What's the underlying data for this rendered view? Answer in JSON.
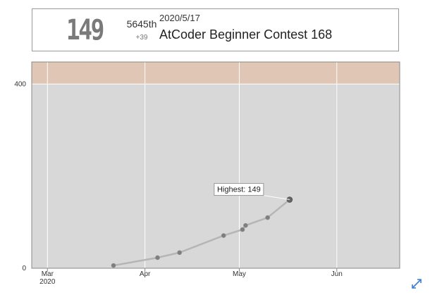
{
  "status": {
    "rating": "149",
    "place": "5645th",
    "diff": "+39",
    "date": "2020/5/17",
    "contest": "AtCoder Beginner Contest 168"
  },
  "tooltip": {
    "label": "Highest: 149"
  },
  "colors": {
    "band_gray": "#d8d8d8",
    "band_brown": "#e0c6b4",
    "line": "#b5b5b5",
    "point": "#7d7d7d",
    "highest_point": "#666666"
  },
  "chart_data": {
    "type": "line",
    "title": "",
    "xlabel": "",
    "ylabel": "",
    "x_range": [
      "2020-02-25",
      "2020-06-21"
    ],
    "y_range": [
      0,
      448
    ],
    "y_ticks": [
      0,
      400
    ],
    "x_ticks": [
      {
        "date": "2020-03-01",
        "label": "Mar",
        "sublabel": "2020"
      },
      {
        "date": "2020-04-01",
        "label": "Apr",
        "sublabel": ""
      },
      {
        "date": "2020-05-01",
        "label": "May",
        "sublabel": ""
      },
      {
        "date": "2020-06-01",
        "label": "Jun",
        "sublabel": ""
      }
    ],
    "bands": [
      {
        "from": 0,
        "to": 400,
        "color": "#d8d8d8"
      },
      {
        "from": 400,
        "to": 448,
        "color": "#e0c6b4"
      }
    ],
    "grid": true,
    "series": [
      {
        "points": [
          {
            "x": "2020-03-22",
            "y": 6
          },
          {
            "x": "2020-04-05",
            "y": 23
          },
          {
            "x": "2020-04-12",
            "y": 34
          },
          {
            "x": "2020-04-26",
            "y": 71
          },
          {
            "x": "2020-05-02",
            "y": 84
          },
          {
            "x": "2020-05-03",
            "y": 93
          },
          {
            "x": "2020-05-10",
            "y": 110
          },
          {
            "x": "2020-05-17",
            "y": 149
          }
        ],
        "highest_index": 7
      }
    ]
  }
}
